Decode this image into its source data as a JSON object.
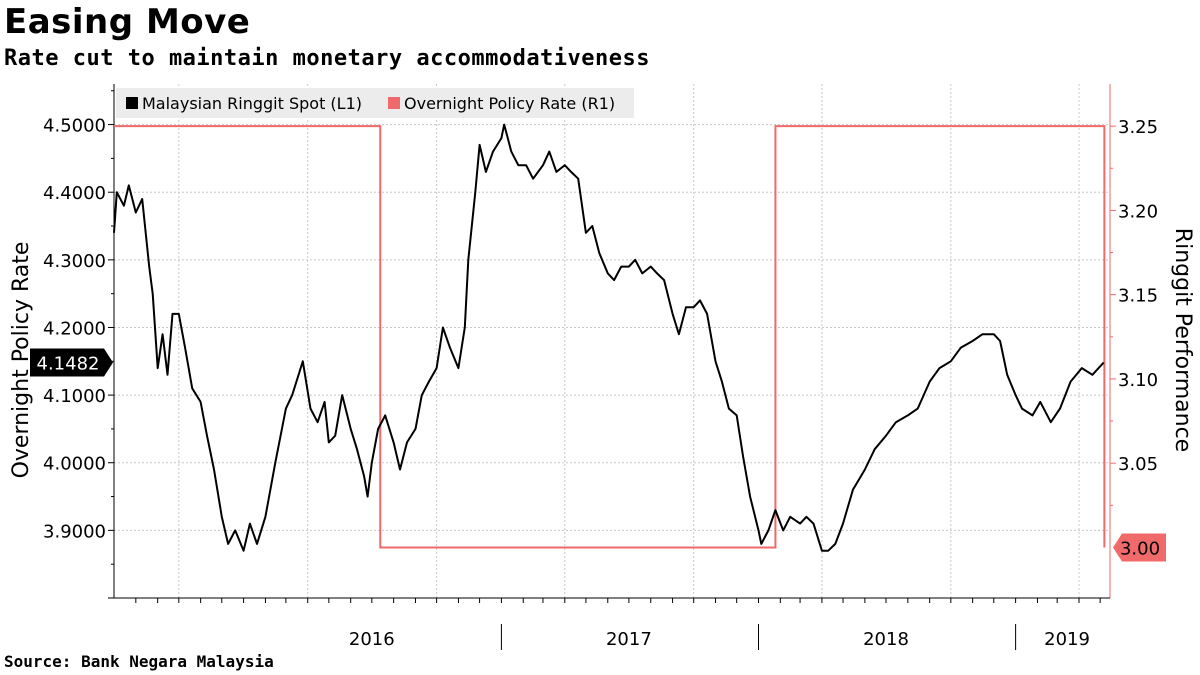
{
  "header": {
    "title": "Easing Move",
    "subtitle": "Rate cut to maintain monetary accommodativeness"
  },
  "footer": {
    "source": "Source:  Bank Negara Malaysia"
  },
  "colors": {
    "ringgit": "#000000",
    "policy_rate": "#f06a6a",
    "grid": "#c8c8c8"
  },
  "chart_data": {
    "type": "line",
    "title": "Easing Move",
    "subtitle": "Rate cut to maintain monetary accommodativeness",
    "left_axis": {
      "label": "Overnight Policy Rate",
      "ylim": [
        3.8,
        4.56
      ],
      "ticks": [
        3.9,
        4.0,
        4.1,
        4.2,
        4.3,
        4.4,
        4.5
      ],
      "tick_labels": [
        "3.9000",
        "4.0000",
        "4.1000",
        "4.2000",
        "4.3000",
        "4.4000",
        "4.5000"
      ]
    },
    "right_axis": {
      "label": "Ringgit Performance",
      "ylim": [
        2.97,
        3.275
      ],
      "ticks": [
        3.05,
        3.1,
        3.15,
        3.2,
        3.25
      ],
      "tick_labels": [
        "3.05",
        "3.10",
        "3.15",
        "3.20",
        "3.25"
      ]
    },
    "x_axis": {
      "range": [
        "2015-07-01",
        "2019-05-15"
      ],
      "year_labels": [
        {
          "label": "2016",
          "date": "2016-07-01"
        },
        {
          "label": "2017",
          "date": "2017-07-01"
        },
        {
          "label": "2018",
          "date": "2018-07-01"
        },
        {
          "label": "2019",
          "date": "2019-03-15"
        }
      ],
      "year_boundaries": [
        "2017-01-01",
        "2018-01-01",
        "2019-01-01"
      ],
      "grid_dates": [
        "2015-10-01",
        "2016-04-01",
        "2016-10-01",
        "2017-04-01",
        "2017-10-01",
        "2018-04-01",
        "2018-10-01",
        "2019-04-01"
      ]
    },
    "grid": true,
    "legend_position": "top-left",
    "series": [
      {
        "name": "Malaysian Ringgit Spot (L1)",
        "axis": "left",
        "last_value_label": "4.1482",
        "points": [
          [
            "2015-07-01",
            4.34
          ],
          [
            "2015-07-05",
            4.4
          ],
          [
            "2015-07-15",
            4.38
          ],
          [
            "2015-07-22",
            4.41
          ],
          [
            "2015-08-01",
            4.37
          ],
          [
            "2015-08-10",
            4.39
          ],
          [
            "2015-08-20",
            4.29
          ],
          [
            "2015-08-25",
            4.25
          ],
          [
            "2015-09-01",
            4.14
          ],
          [
            "2015-09-08",
            4.19
          ],
          [
            "2015-09-15",
            4.13
          ],
          [
            "2015-09-22",
            4.22
          ],
          [
            "2015-10-01",
            4.22
          ],
          [
            "2015-10-10",
            4.17
          ],
          [
            "2015-10-20",
            4.11
          ],
          [
            "2015-11-01",
            4.09
          ],
          [
            "2015-11-10",
            4.04
          ],
          [
            "2015-11-20",
            3.99
          ],
          [
            "2015-12-01",
            3.92
          ],
          [
            "2015-12-10",
            3.88
          ],
          [
            "2015-12-20",
            3.9
          ],
          [
            "2016-01-01",
            3.87
          ],
          [
            "2016-01-10",
            3.91
          ],
          [
            "2016-01-20",
            3.88
          ],
          [
            "2016-02-01",
            3.92
          ],
          [
            "2016-02-15",
            4.0
          ],
          [
            "2016-03-01",
            4.08
          ],
          [
            "2016-03-10",
            4.1
          ],
          [
            "2016-03-25",
            4.15
          ],
          [
            "2016-04-05",
            4.08
          ],
          [
            "2016-04-15",
            4.06
          ],
          [
            "2016-04-25",
            4.09
          ],
          [
            "2016-05-01",
            4.03
          ],
          [
            "2016-05-10",
            4.04
          ],
          [
            "2016-05-20",
            4.1
          ],
          [
            "2016-06-01",
            4.05
          ],
          [
            "2016-06-10",
            4.02
          ],
          [
            "2016-06-20",
            3.98
          ],
          [
            "2016-06-25",
            3.95
          ],
          [
            "2016-07-01",
            4.0
          ],
          [
            "2016-07-10",
            4.05
          ],
          [
            "2016-07-20",
            4.07
          ],
          [
            "2016-08-01",
            4.03
          ],
          [
            "2016-08-10",
            3.99
          ],
          [
            "2016-08-20",
            4.03
          ],
          [
            "2016-09-01",
            4.05
          ],
          [
            "2016-09-10",
            4.1
          ],
          [
            "2016-09-20",
            4.12
          ],
          [
            "2016-10-01",
            4.14
          ],
          [
            "2016-10-10",
            4.2
          ],
          [
            "2016-10-20",
            4.17
          ],
          [
            "2016-11-01",
            4.14
          ],
          [
            "2016-11-10",
            4.2
          ],
          [
            "2016-11-15",
            4.3
          ],
          [
            "2016-11-25",
            4.4
          ],
          [
            "2016-12-01",
            4.47
          ],
          [
            "2016-12-10",
            4.43
          ],
          [
            "2016-12-20",
            4.46
          ],
          [
            "2017-01-01",
            4.48
          ],
          [
            "2017-01-05",
            4.5
          ],
          [
            "2017-01-15",
            4.46
          ],
          [
            "2017-01-25",
            4.44
          ],
          [
            "2017-02-05",
            4.44
          ],
          [
            "2017-02-15",
            4.42
          ],
          [
            "2017-03-01",
            4.44
          ],
          [
            "2017-03-10",
            4.46
          ],
          [
            "2017-03-20",
            4.43
          ],
          [
            "2017-04-01",
            4.44
          ],
          [
            "2017-04-10",
            4.43
          ],
          [
            "2017-04-20",
            4.42
          ],
          [
            "2017-05-01",
            4.34
          ],
          [
            "2017-05-10",
            4.35
          ],
          [
            "2017-05-20",
            4.31
          ],
          [
            "2017-06-01",
            4.28
          ],
          [
            "2017-06-10",
            4.27
          ],
          [
            "2017-06-20",
            4.29
          ],
          [
            "2017-07-01",
            4.29
          ],
          [
            "2017-07-10",
            4.3
          ],
          [
            "2017-07-20",
            4.28
          ],
          [
            "2017-08-01",
            4.29
          ],
          [
            "2017-08-10",
            4.28
          ],
          [
            "2017-08-20",
            4.27
          ],
          [
            "2017-09-01",
            4.22
          ],
          [
            "2017-09-10",
            4.19
          ],
          [
            "2017-09-20",
            4.23
          ],
          [
            "2017-10-01",
            4.23
          ],
          [
            "2017-10-10",
            4.24
          ],
          [
            "2017-10-20",
            4.22
          ],
          [
            "2017-11-01",
            4.15
          ],
          [
            "2017-11-10",
            4.12
          ],
          [
            "2017-11-20",
            4.08
          ],
          [
            "2017-12-01",
            4.07
          ],
          [
            "2017-12-10",
            4.01
          ],
          [
            "2017-12-20",
            3.95
          ],
          [
            "2018-01-01",
            3.9
          ],
          [
            "2018-01-05",
            3.88
          ],
          [
            "2018-01-15",
            3.9
          ],
          [
            "2018-01-25",
            3.93
          ],
          [
            "2018-02-05",
            3.9
          ],
          [
            "2018-02-15",
            3.92
          ],
          [
            "2018-03-01",
            3.91
          ],
          [
            "2018-03-10",
            3.92
          ],
          [
            "2018-03-20",
            3.91
          ],
          [
            "2018-04-01",
            3.87
          ],
          [
            "2018-04-10",
            3.87
          ],
          [
            "2018-04-20",
            3.88
          ],
          [
            "2018-05-01",
            3.91
          ],
          [
            "2018-05-15",
            3.96
          ],
          [
            "2018-06-01",
            3.99
          ],
          [
            "2018-06-15",
            4.02
          ],
          [
            "2018-07-01",
            4.04
          ],
          [
            "2018-07-15",
            4.06
          ],
          [
            "2018-08-01",
            4.07
          ],
          [
            "2018-08-15",
            4.08
          ],
          [
            "2018-09-01",
            4.12
          ],
          [
            "2018-09-15",
            4.14
          ],
          [
            "2018-10-01",
            4.15
          ],
          [
            "2018-10-15",
            4.17
          ],
          [
            "2018-11-01",
            4.18
          ],
          [
            "2018-11-15",
            4.19
          ],
          [
            "2018-12-01",
            4.19
          ],
          [
            "2018-12-10",
            4.18
          ],
          [
            "2018-12-20",
            4.13
          ],
          [
            "2019-01-01",
            4.1
          ],
          [
            "2019-01-10",
            4.08
          ],
          [
            "2019-01-25",
            4.07
          ],
          [
            "2019-02-05",
            4.09
          ],
          [
            "2019-02-20",
            4.06
          ],
          [
            "2019-03-05",
            4.08
          ],
          [
            "2019-03-20",
            4.12
          ],
          [
            "2019-04-05",
            4.14
          ],
          [
            "2019-04-20",
            4.13
          ],
          [
            "2019-05-06",
            4.1482
          ]
        ]
      },
      {
        "name": "Overnight Policy Rate (R1)",
        "axis": "right",
        "step": true,
        "last_value_label": "3.00",
        "points": [
          [
            "2015-07-01",
            3.25
          ],
          [
            "2016-07-13",
            3.0
          ],
          [
            "2018-01-25",
            3.25
          ],
          [
            "2019-05-07",
            3.0
          ]
        ]
      }
    ]
  }
}
